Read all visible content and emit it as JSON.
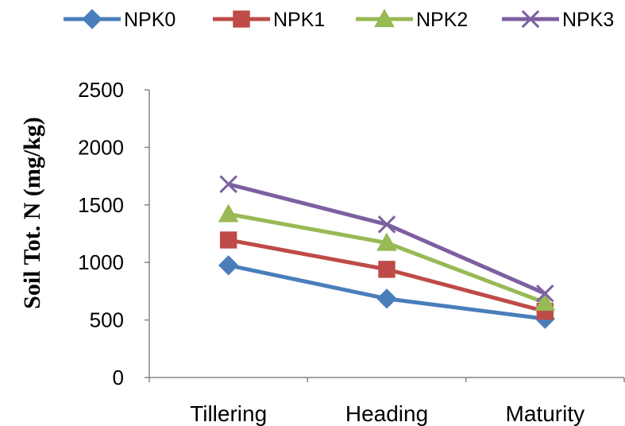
{
  "chart_data": {
    "type": "line",
    "title": "",
    "xlabel": "",
    "ylabel": "Soil Tot. N (mg/kg)",
    "categories": [
      "Tillering",
      "Heading",
      "Maturity"
    ],
    "ylim": [
      0,
      2500
    ],
    "yticks": [
      "0",
      "500",
      "1000",
      "1500",
      "2000",
      "2500"
    ],
    "grid": false,
    "legend_position": "top",
    "series": [
      {
        "name": "NPK0",
        "values": [
          975,
          685,
          510
        ],
        "color": "#4a7ebb",
        "marker": "diamond"
      },
      {
        "name": "NPK1",
        "values": [
          1195,
          940,
          575
        ],
        "color": "#be4b48",
        "marker": "square"
      },
      {
        "name": "NPK2",
        "values": [
          1420,
          1170,
          650
        ],
        "color": "#98b954",
        "marker": "triangle"
      },
      {
        "name": "NPK3",
        "values": [
          1680,
          1330,
          730
        ],
        "color": "#7d60a0",
        "marker": "x"
      }
    ]
  }
}
